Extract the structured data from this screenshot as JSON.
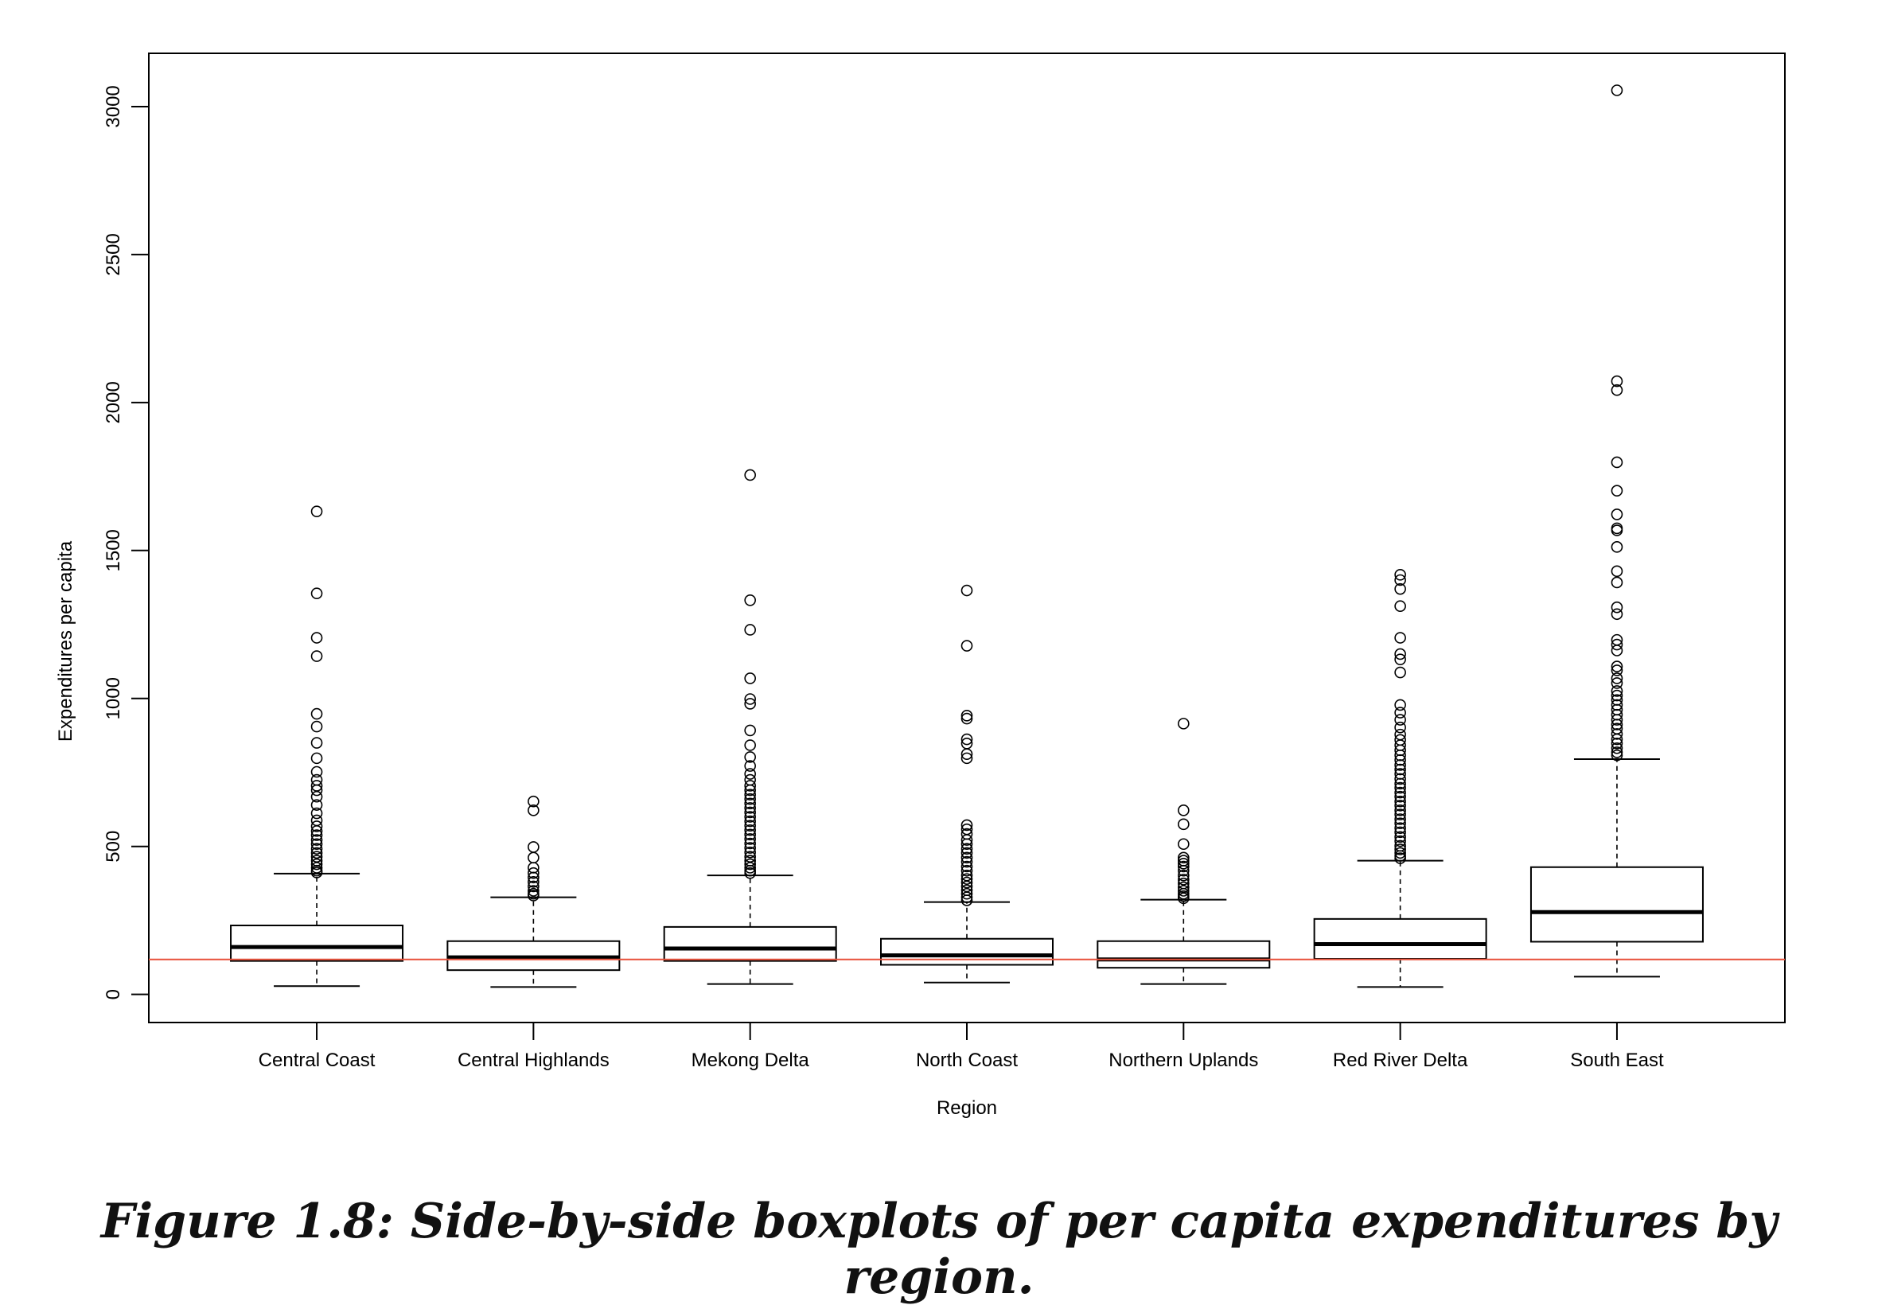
{
  "chart_data": {
    "type": "boxplot",
    "xlabel": "Region",
    "ylabel": "Expenditures per capita",
    "ylim": [
      -95,
      3180
    ],
    "yticks": [
      0,
      500,
      1000,
      1500,
      2000,
      2500,
      3000
    ],
    "reference_line": {
      "y": 118,
      "color": "#e8513a"
    },
    "categories": [
      "Central Coast",
      "Central Highlands",
      "Mekong Delta",
      "North Coast",
      "Northern Uplands",
      "Red River Delta",
      "South East"
    ],
    "boxes": [
      {
        "category": "Central Coast",
        "whisker_low": 28,
        "q1": 113,
        "median": 160,
        "q3": 233,
        "whisker_high": 408,
        "outliers": [
          1632,
          1355,
          1205,
          1143,
          948,
          905,
          850,
          798,
          752,
          725,
          705,
          690,
          668,
          640,
          612,
          588,
          568,
          552,
          538,
          522,
          508,
          492,
          478,
          465,
          452,
          440,
          428,
          418,
          412
        ]
      },
      {
        "category": "Central Highlands",
        "whisker_low": 25,
        "q1": 82,
        "median": 125,
        "q3": 180,
        "whisker_high": 328,
        "outliers": [
          652,
          622,
          498,
          462,
          428,
          410,
          395,
          380,
          365,
          350,
          340,
          334
        ]
      },
      {
        "category": "Mekong Delta",
        "whisker_low": 35,
        "q1": 113,
        "median": 155,
        "q3": 228,
        "whisker_high": 402,
        "outliers": [
          1755,
          1332,
          1232,
          1068,
          998,
          982,
          892,
          842,
          802,
          772,
          745,
          725,
          705,
          690,
          675,
          660,
          645,
          630,
          615,
          600,
          585,
          570,
          555,
          540,
          525,
          510,
          495,
          480,
          465,
          452,
          440,
          428,
          418,
          410
        ]
      },
      {
        "category": "North Coast",
        "whisker_low": 40,
        "q1": 100,
        "median": 132,
        "q3": 188,
        "whisker_high": 312,
        "outliers": [
          1365,
          1178,
          942,
          932,
          862,
          848,
          812,
          798,
          572,
          558,
          542,
          522,
          508,
          492,
          478,
          462,
          448,
          432,
          418,
          402,
          390,
          378,
          365,
          352,
          340,
          328,
          318
        ]
      },
      {
        "category": "Northern Uplands",
        "whisker_low": 35,
        "q1": 90,
        "median": 118,
        "q3": 180,
        "whisker_high": 320,
        "outliers": [
          915,
          622,
          575,
          508,
          462,
          452,
          442,
          432,
          418,
          402,
          388,
          375,
          362,
          350,
          340,
          332,
          325
        ]
      },
      {
        "category": "Red River Delta",
        "whisker_low": 25,
        "q1": 120,
        "median": 170,
        "q3": 255,
        "whisker_high": 452,
        "outliers": [
          1418,
          1400,
          1370,
          1312,
          1205,
          1150,
          1132,
          1088,
          978,
          952,
          928,
          902,
          878,
          860,
          842,
          825,
          808,
          792,
          775,
          760,
          745,
          728,
          712,
          698,
          682,
          668,
          652,
          638,
          622,
          608,
          592,
          578,
          562,
          548,
          532,
          518,
          502,
          490,
          478,
          468,
          460
        ]
      },
      {
        "category": "South East",
        "whisker_low": 60,
        "q1": 178,
        "median": 278,
        "q3": 430,
        "whisker_high": 795,
        "outliers": [
          3055,
          2072,
          2042,
          1798,
          1702,
          1622,
          1575,
          1568,
          1512,
          1430,
          1392,
          1308,
          1285,
          1198,
          1182,
          1162,
          1108,
          1095,
          1068,
          1052,
          1025,
          1010,
          995,
          978,
          962,
          945,
          928,
          912,
          898,
          880,
          862,
          848,
          832,
          818,
          808
        ]
      }
    ]
  },
  "caption": "Figure 1.8: Side-by-side boxplots of per capita expenditures by region.",
  "colors": {
    "axis": "#000000",
    "reference": "#e8513a"
  }
}
